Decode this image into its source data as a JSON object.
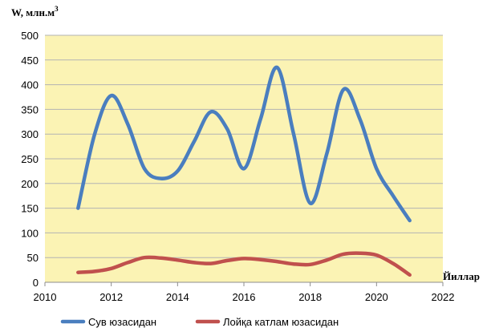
{
  "chart_data": {
    "type": "line",
    "ylabel": "W, млн.м",
    "ylabel_sup": "3",
    "xlabel": "Йиллар",
    "xlim": [
      2010,
      2022
    ],
    "ylim": [
      0,
      500
    ],
    "xticks": [
      2010,
      2012,
      2014,
      2016,
      2018,
      2020,
      2022
    ],
    "yticks": [
      0,
      50,
      100,
      150,
      200,
      250,
      300,
      350,
      400,
      450,
      500
    ],
    "grid": "horizontal",
    "plot_background": "#fbf3b4",
    "legend_position": "bottom",
    "series": [
      {
        "name": "Сув юзасидан",
        "color": "#4a7ebf",
        "x": [
          2011,
          2011.5,
          2012,
          2012.5,
          2013,
          2013.5,
          2014,
          2014.5,
          2015,
          2015.5,
          2016,
          2016.5,
          2017,
          2017.5,
          2018,
          2018.5,
          2019,
          2019.5,
          2020,
          2020.5,
          2021
        ],
        "values": [
          150,
          300,
          378,
          320,
          230,
          210,
          225,
          285,
          345,
          310,
          230,
          330,
          435,
          300,
          160,
          260,
          390,
          330,
          230,
          175,
          125
        ]
      },
      {
        "name": "Лойқа катлам юзасидан",
        "color": "#c0504d",
        "x": [
          2011,
          2011.5,
          2012,
          2012.5,
          2013,
          2013.5,
          2014,
          2014.5,
          2015,
          2015.5,
          2016,
          2016.5,
          2017,
          2017.5,
          2018,
          2018.5,
          2019,
          2019.5,
          2020,
          2020.5,
          2021
        ],
        "values": [
          20,
          22,
          28,
          40,
          50,
          49,
          45,
          40,
          38,
          44,
          48,
          46,
          42,
          37,
          36,
          45,
          57,
          59,
          55,
          38,
          15
        ]
      }
    ]
  }
}
